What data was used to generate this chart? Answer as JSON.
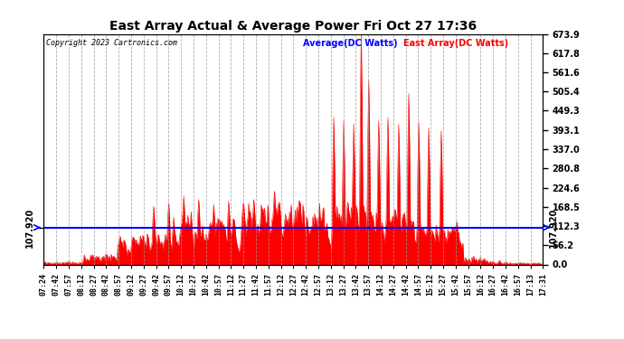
{
  "title": "East Array Actual & Average Power Fri Oct 27 17:36",
  "copyright": "Copyright 2023 Cartronics.com",
  "legend_avg": "Average(DC Watts)",
  "legend_east": "East Array(DC Watts)",
  "avg_value": 107.92,
  "ymin": 0.0,
  "ymax": 673.9,
  "yticks_right": [
    0.0,
    56.2,
    112.3,
    168.5,
    224.6,
    280.8,
    337.0,
    393.1,
    449.3,
    505.4,
    561.6,
    617.8,
    673.9
  ],
  "avg_color": "#0000ff",
  "east_color": "#ff0000",
  "east_fill": "#ff0000",
  "bg_color": "#ffffff",
  "grid_color": "#999999",
  "title_color": "#000000",
  "copyright_color": "#000000",
  "legend_avg_color": "#0000ff",
  "legend_east_color": "#ff0000",
  "xtick_labels": [
    "07:24",
    "07:42",
    "07:57",
    "08:12",
    "08:27",
    "08:42",
    "08:57",
    "09:12",
    "09:27",
    "09:42",
    "09:57",
    "10:12",
    "10:27",
    "10:42",
    "10:57",
    "11:12",
    "11:27",
    "11:42",
    "11:57",
    "12:12",
    "12:27",
    "12:42",
    "12:57",
    "13:12",
    "13:27",
    "13:42",
    "13:57",
    "14:12",
    "14:27",
    "14:42",
    "14:57",
    "15:12",
    "15:27",
    "15:42",
    "15:57",
    "16:12",
    "16:27",
    "16:42",
    "16:57",
    "17:13",
    "17:31"
  ],
  "seed": 12345
}
